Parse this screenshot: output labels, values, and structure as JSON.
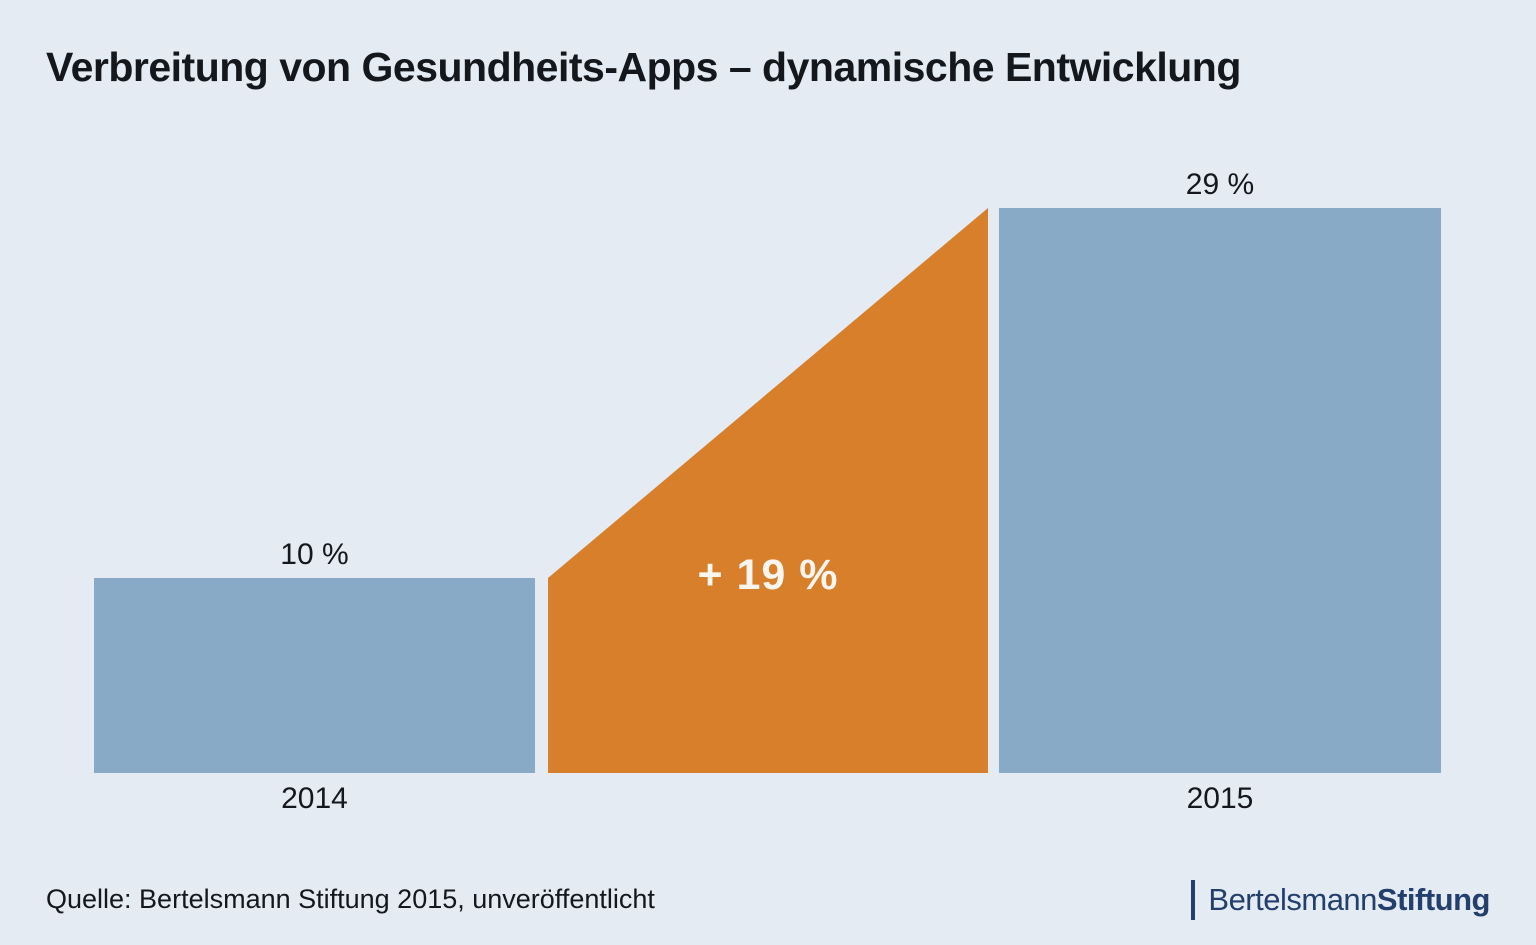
{
  "title": "Verbreitung von Gesundheits-Apps – dynamische Entwicklung",
  "source": "Quelle: Bertelsmann Stiftung 2015, unveröffentlicht",
  "logo": {
    "name_regular": "Bertelsmann",
    "name_bold": "Stiftung"
  },
  "colors": {
    "background": "#e4ebf2",
    "bar_blue": "#89aac6",
    "delta_orange": "#d77f2b",
    "text": "#14171c",
    "delta_label_white": "#faf6ef",
    "logo_navy": "#23406d"
  },
  "chart_data": {
    "type": "bar",
    "title": "Verbreitung von Gesundheits-Apps – dynamische Entwicklung",
    "categories": [
      "2014",
      "2015"
    ],
    "values": [
      10,
      29
    ],
    "value_labels": [
      "10 %",
      "29 %"
    ],
    "delta_value": 19,
    "delta_label": "+ 19 %",
    "unit": "%",
    "xlabel": "",
    "ylabel": "",
    "ylim": [
      0,
      29
    ],
    "grid": false,
    "legend": "none",
    "annotations": [
      "Orange wedge between bars marks the +19 percentage-point increase from 2014 to 2015"
    ]
  }
}
